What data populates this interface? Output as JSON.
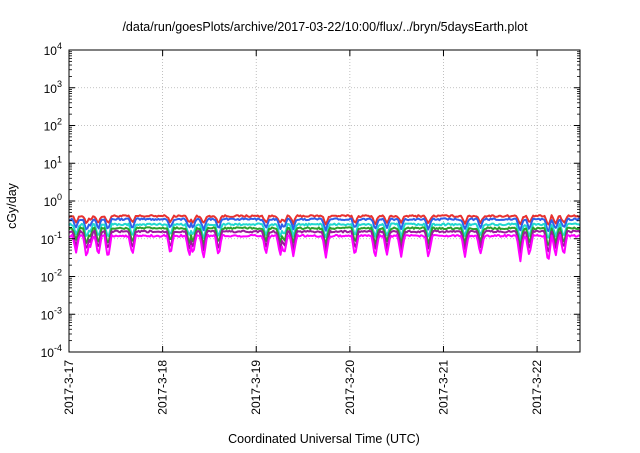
{
  "chart_data": {
    "type": "line",
    "title": "/data/run/goesPlots/archive/2017-03-22/10:00/flux/../bryn/5daysEarth.plot",
    "xlabel": "Coordinated Universal Time (UTC)",
    "ylabel": "cGy/day",
    "yscale": "log",
    "ylim": [
      0.0001,
      10000
    ],
    "xlim": [
      "2017-03-17T00:00",
      "2017-03-22T11:00"
    ],
    "grid": true,
    "y_ticks": [
      {
        "base": "10",
        "exp": "4"
      },
      {
        "base": "10",
        "exp": "3"
      },
      {
        "base": "10",
        "exp": "2"
      },
      {
        "base": "10",
        "exp": "1"
      },
      {
        "base": "10",
        "exp": "0"
      },
      {
        "base": "10",
        "exp": "-1"
      },
      {
        "base": "10",
        "exp": "-2"
      },
      {
        "base": "10",
        "exp": "-3"
      },
      {
        "base": "10",
        "exp": "-4"
      }
    ],
    "x_ticks": [
      "2017-3-17",
      "2017-3-18",
      "2017-3-19",
      "2017-3-20",
      "2017-3-21",
      "2017-3-22"
    ],
    "series": [
      {
        "color": "#e8312f",
        "baseline": 0.4
      },
      {
        "color": "#2f5fe8",
        "baseline": 0.33
      },
      {
        "color": "#20d8d0",
        "baseline": 0.24
      },
      {
        "color": "#2ca02c",
        "baseline": 0.19
      },
      {
        "color": "#9b1b9b",
        "baseline": 0.155
      },
      {
        "color": "#ff00ff",
        "baseline": 0.12
      }
    ],
    "dips": [
      {
        "t": "2017-03-17T01:48",
        "depth": 0.45
      },
      {
        "t": "2017-03-17T04:30",
        "depth": 0.6
      },
      {
        "t": "2017-03-17T05:20",
        "depth": 0.35
      },
      {
        "t": "2017-03-17T07:30",
        "depth": 0.55
      },
      {
        "t": "2017-03-17T10:00",
        "depth": 0.6
      },
      {
        "t": "2017-03-17T16:15",
        "depth": 0.55
      },
      {
        "t": "2017-03-18T02:00",
        "depth": 0.5
      },
      {
        "t": "2017-03-18T06:50",
        "depth": 0.55
      },
      {
        "t": "2017-03-18T07:45",
        "depth": 0.5
      },
      {
        "t": "2017-03-18T10:30",
        "depth": 0.6
      },
      {
        "t": "2017-03-18T14:20",
        "depth": 0.55
      },
      {
        "t": "2017-03-19T02:30",
        "depth": 0.5
      },
      {
        "t": "2017-03-19T06:10",
        "depth": 0.55
      },
      {
        "t": "2017-03-19T07:10",
        "depth": 0.5
      },
      {
        "t": "2017-03-19T09:30",
        "depth": 0.55
      },
      {
        "t": "2017-03-19T17:50",
        "depth": 0.6
      },
      {
        "t": "2017-03-20T01:20",
        "depth": 0.55
      },
      {
        "t": "2017-03-20T06:30",
        "depth": 0.6
      },
      {
        "t": "2017-03-20T09:30",
        "depth": 0.5
      },
      {
        "t": "2017-03-20T13:10",
        "depth": 0.55
      },
      {
        "t": "2017-03-20T20:10",
        "depth": 0.6
      },
      {
        "t": "2017-03-21T05:30",
        "depth": 0.55
      },
      {
        "t": "2017-03-21T09:30",
        "depth": 0.5
      },
      {
        "t": "2017-03-21T19:40",
        "depth": 0.7
      },
      {
        "t": "2017-03-21T22:00",
        "depth": 0.55
      },
      {
        "t": "2017-03-22T02:50",
        "depth": 0.75
      },
      {
        "t": "2017-03-22T04:45",
        "depth": 0.55
      },
      {
        "t": "2017-03-22T06:50",
        "depth": 0.55
      }
    ],
    "line_width": 2
  }
}
